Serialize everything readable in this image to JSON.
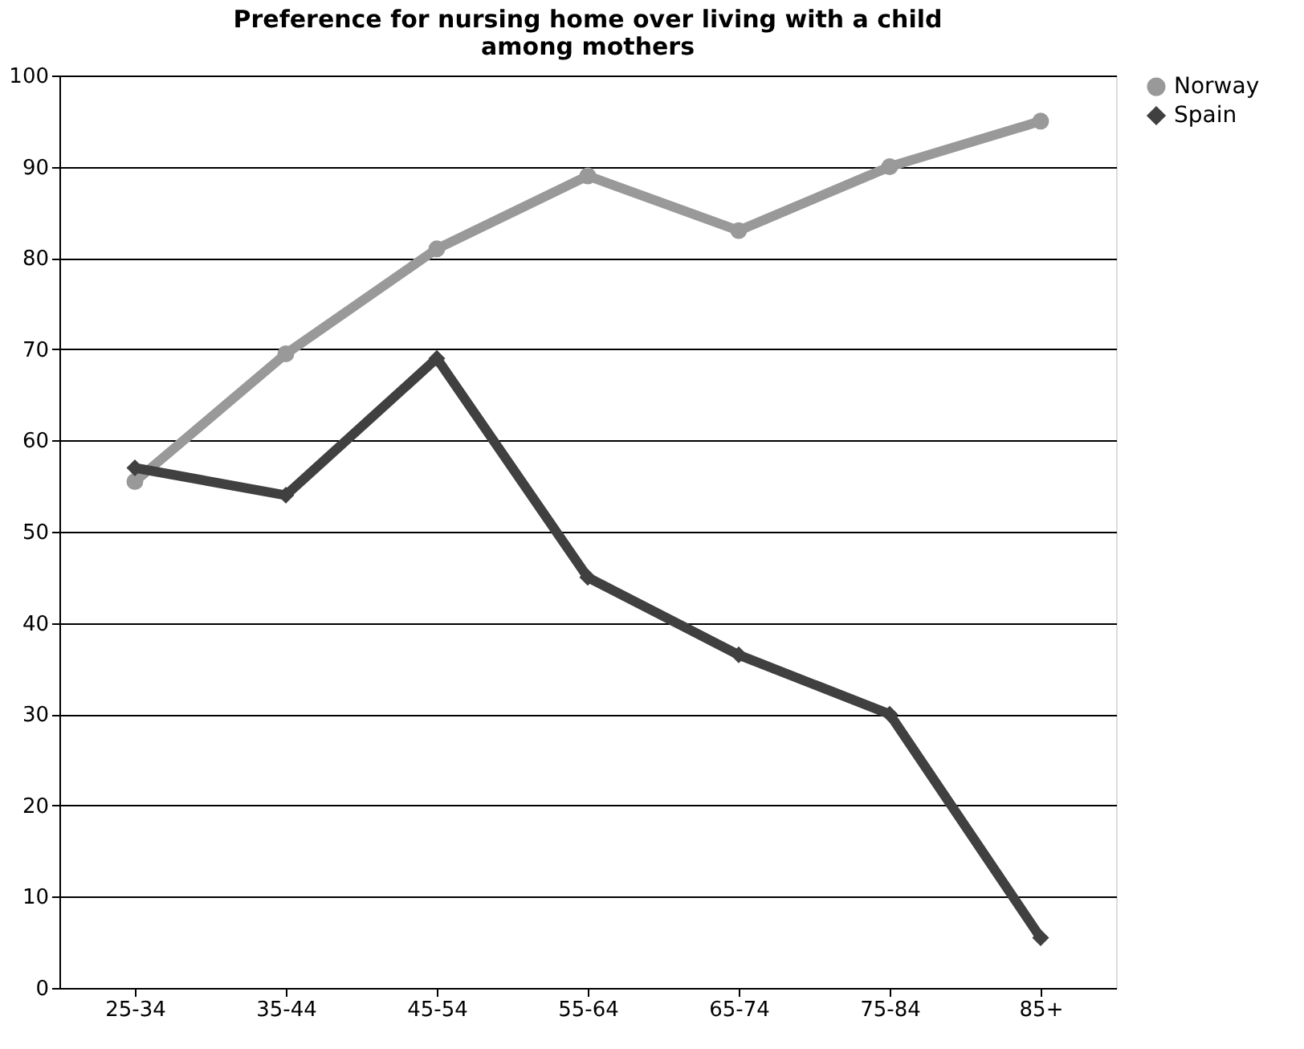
{
  "chart_data": {
    "type": "line",
    "title": [
      "Preference for nursing home over living with a child",
      "among mothers"
    ],
    "categories": [
      "25-34",
      "35-44",
      "45-54",
      "55-64",
      "65-74",
      "75-84",
      "85+"
    ],
    "series": [
      {
        "name": "Norway",
        "color": "#999999",
        "marker": "circle",
        "values": [
          55.5,
          69.5,
          81,
          89,
          83,
          90,
          95
        ]
      },
      {
        "name": "Spain",
        "color": "#404040",
        "marker": "diamond",
        "values": [
          57,
          54,
          69,
          45,
          36.5,
          30,
          5.5
        ]
      }
    ],
    "ylim": [
      0,
      100
    ],
    "yticks": [
      0,
      10,
      20,
      30,
      40,
      50,
      60,
      70,
      80,
      90,
      100
    ],
    "grid": "y",
    "legend": "right"
  }
}
